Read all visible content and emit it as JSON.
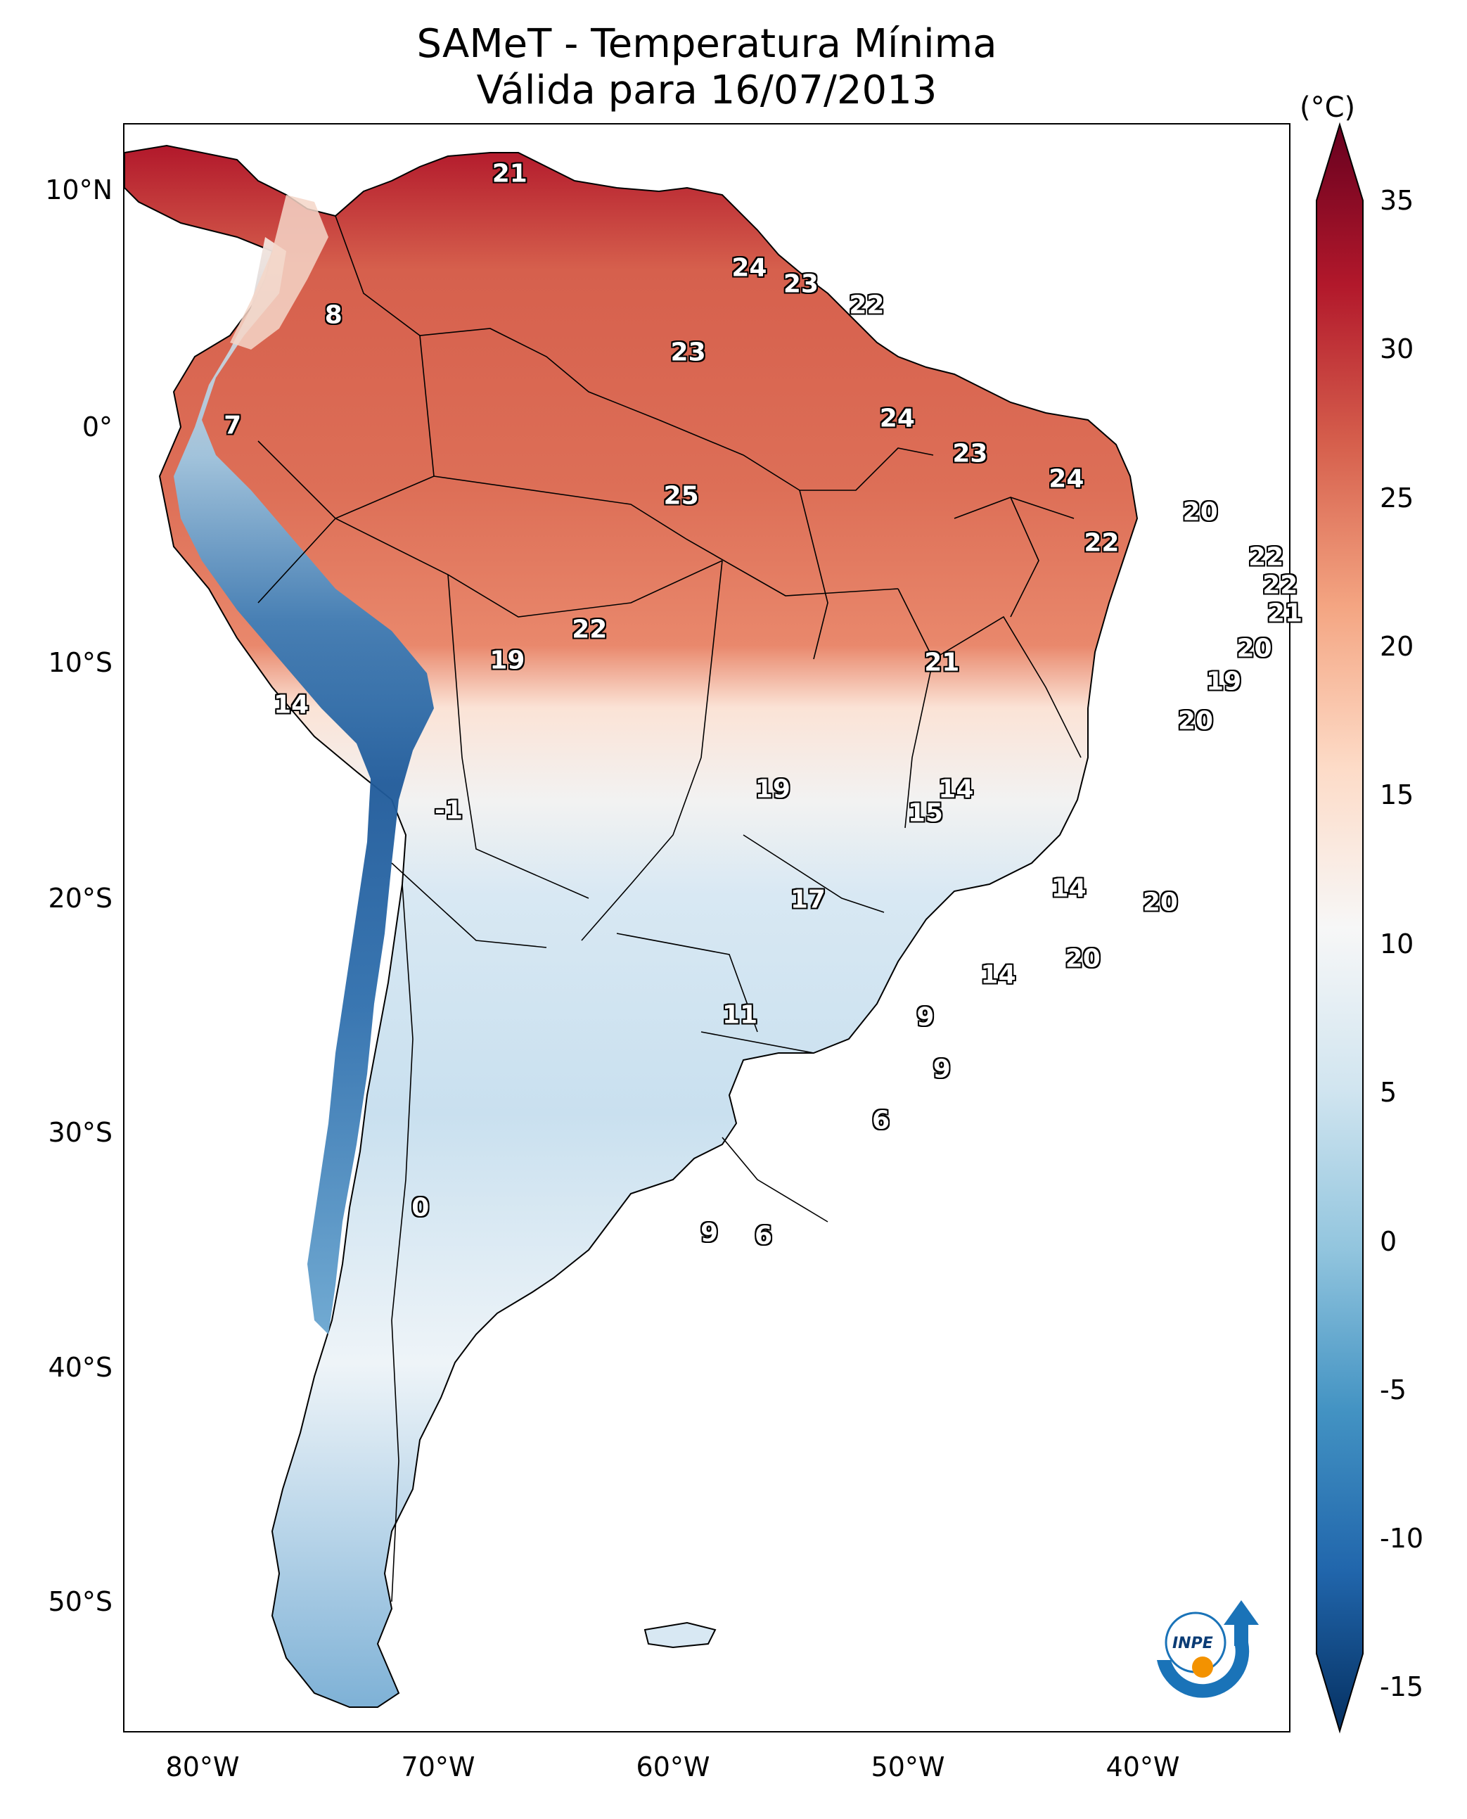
{
  "title_line1": "SAMeT - Temperatura Mínima",
  "title_line2": "Válida para 16/07/2013",
  "unit": "(°C)",
  "lat_labels": [
    "10°N",
    "0°",
    "10°S",
    "20°S",
    "30°S",
    "40°S",
    "50°S"
  ],
  "lon_labels": [
    "80°W",
    "70°W",
    "60°W",
    "50°W",
    "40°W"
  ],
  "colorbar": {
    "min": -15,
    "max": 35,
    "ticks": [
      "35",
      "30",
      "25",
      "20",
      "15",
      "10",
      "5",
      "0",
      "-5",
      "-10",
      "-15"
    ],
    "colors": [
      "#053061",
      "#2166ac",
      "#4393c3",
      "#92c5de",
      "#d1e5f0",
      "#f7f7f7",
      "#fddbc7",
      "#f4a582",
      "#d6604d",
      "#b2182b",
      "#67001f"
    ]
  },
  "logo_text": "INPE",
  "values": [
    {
      "v": "21",
      "lon": -67.0,
      "lat": 10.5
    },
    {
      "v": "8",
      "lon": -74.5,
      "lat": 4.5
    },
    {
      "v": "24",
      "lon": -56.8,
      "lat": 6.5
    },
    {
      "v": "23",
      "lon": -54.6,
      "lat": 5.8
    },
    {
      "v": "22",
      "lon": -51.8,
      "lat": 4.9
    },
    {
      "v": "23",
      "lon": -59.4,
      "lat": 2.9
    },
    {
      "v": "7",
      "lon": -78.8,
      "lat": -0.2
    },
    {
      "v": "24",
      "lon": -50.5,
      "lat": 0.1
    },
    {
      "v": "23",
      "lon": -47.4,
      "lat": -1.4
    },
    {
      "v": "24",
      "lon": -43.3,
      "lat": -2.5
    },
    {
      "v": "25",
      "lon": -59.7,
      "lat": -3.2
    },
    {
      "v": "20",
      "lon": -37.6,
      "lat": -3.9
    },
    {
      "v": "22",
      "lon": -41.8,
      "lat": -5.2
    },
    {
      "v": "22",
      "lon": -34.8,
      "lat": -5.8
    },
    {
      "v": "22",
      "lon": -34.2,
      "lat": -7.0
    },
    {
      "v": "21",
      "lon": -34.0,
      "lat": -8.2
    },
    {
      "v": "22",
      "lon": -63.6,
      "lat": -8.9
    },
    {
      "v": "19",
      "lon": -67.1,
      "lat": -10.2
    },
    {
      "v": "21",
      "lon": -48.6,
      "lat": -10.3
    },
    {
      "v": "20",
      "lon": -35.3,
      "lat": -9.7
    },
    {
      "v": "19",
      "lon": -36.6,
      "lat": -11.1
    },
    {
      "v": "14",
      "lon": -76.3,
      "lat": -12.1
    },
    {
      "v": "20",
      "lon": -37.8,
      "lat": -12.8
    },
    {
      "v": "19",
      "lon": -55.8,
      "lat": -15.7
    },
    {
      "v": "14",
      "lon": -48.0,
      "lat": -15.7
    },
    {
      "v": "15",
      "lon": -49.3,
      "lat": -16.7
    },
    {
      "v": "-1",
      "lon": -69.6,
      "lat": -16.6
    },
    {
      "v": "14",
      "lon": -43.2,
      "lat": -19.9
    },
    {
      "v": "17",
      "lon": -54.3,
      "lat": -20.4
    },
    {
      "v": "20",
      "lon": -39.3,
      "lat": -20.5
    },
    {
      "v": "20",
      "lon": -42.6,
      "lat": -22.9
    },
    {
      "v": "14",
      "lon": -46.2,
      "lat": -23.6
    },
    {
      "v": "11",
      "lon": -57.2,
      "lat": -25.3
    },
    {
      "v": "9",
      "lon": -49.3,
      "lat": -25.4
    },
    {
      "v": "9",
      "lon": -48.6,
      "lat": -27.6
    },
    {
      "v": "6",
      "lon": -51.2,
      "lat": -29.8
    },
    {
      "v": "0",
      "lon": -70.8,
      "lat": -33.5
    },
    {
      "v": "9",
      "lon": -58.5,
      "lat": -34.6
    },
    {
      "v": "6",
      "lon": -56.2,
      "lat": -34.7
    }
  ]
}
